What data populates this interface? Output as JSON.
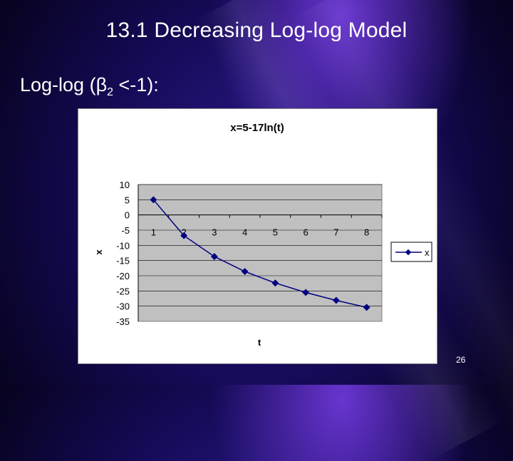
{
  "slide": {
    "title": "13.1 Decreasing Log-log Model",
    "subtitle_prefix": "Log-log (β",
    "subtitle_subscript": "2",
    "subtitle_suffix": " <-1):",
    "page_number": "26"
  },
  "colors": {
    "plot_area": "#c0c0c0",
    "series_line": "#000080",
    "gridline": "#000000",
    "text": "#ffffff"
  },
  "chart_data": {
    "type": "line",
    "title": "x=5-17ln(t)",
    "xlabel": "t",
    "ylabel": "x",
    "x": [
      1,
      2,
      3,
      4,
      5,
      6,
      7,
      8
    ],
    "categories": [
      "1",
      "2",
      "3",
      "4",
      "5",
      "6",
      "7",
      "8"
    ],
    "series": [
      {
        "name": "x",
        "values": [
          5,
          -6.8,
          -13.7,
          -18.6,
          -22.4,
          -25.5,
          -28.1,
          -30.4
        ]
      }
    ],
    "ylim": [
      -35,
      10
    ],
    "yticks": [
      10,
      5,
      0,
      -5,
      -10,
      -15,
      -20,
      -25,
      -30,
      -35
    ],
    "grid": true,
    "legend": "right",
    "marker": "diamond"
  }
}
